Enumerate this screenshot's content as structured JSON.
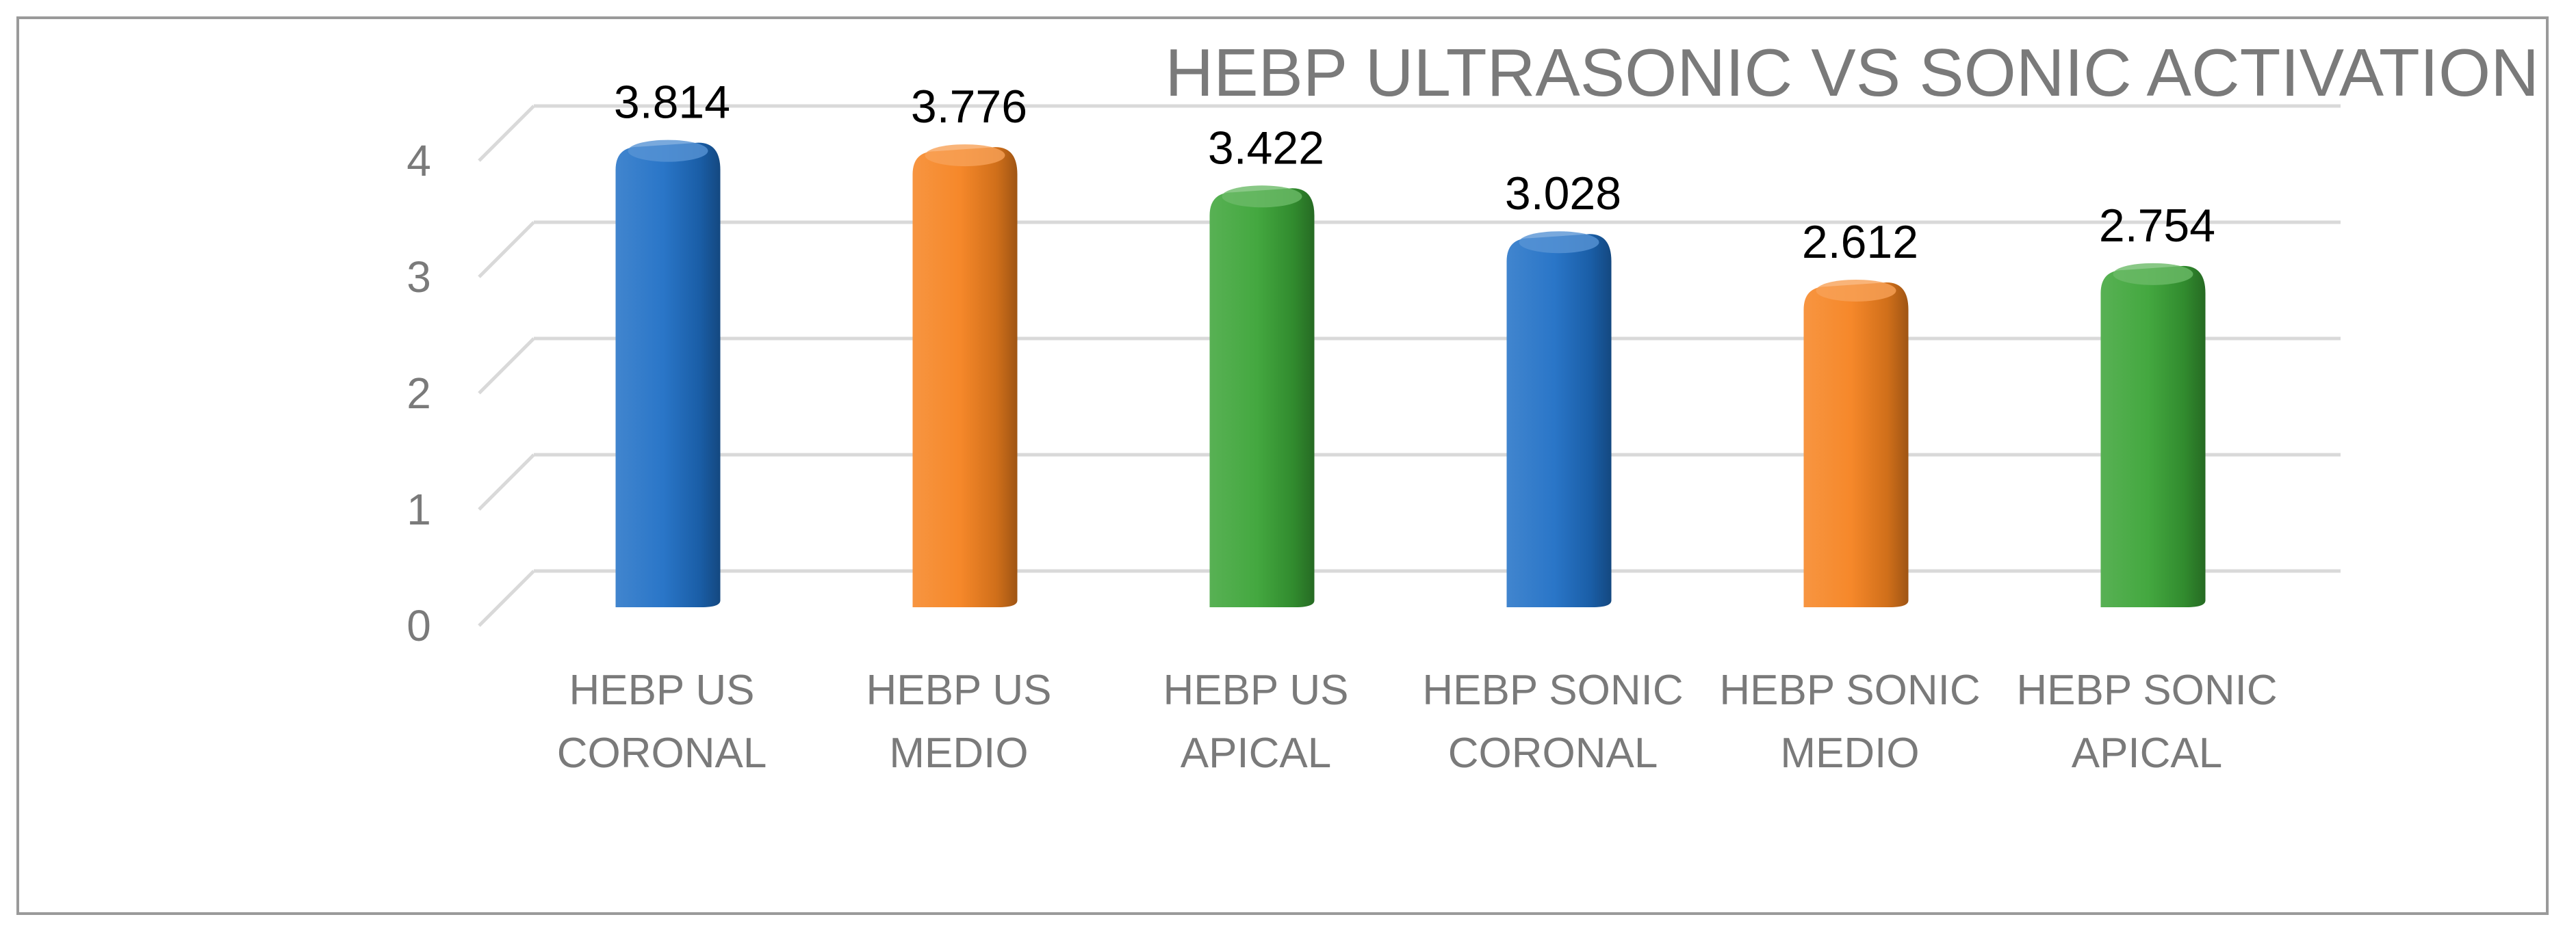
{
  "chart_data": {
    "type": "bar",
    "title": "HEBP ULTRASONIC VS SONIC ACTIVATION",
    "categories": [
      [
        "HEBP US",
        "CORONAL"
      ],
      [
        "HEBP US",
        "MEDIO"
      ],
      [
        "HEBP US",
        "APICAL"
      ],
      [
        "HEBP SONIC",
        "CORONAL"
      ],
      [
        "HEBP SONIC",
        "MEDIO"
      ],
      [
        "HEBP SONIC",
        "APICAL"
      ]
    ],
    "values": [
      3.814,
      3.776,
      3.422,
      3.028,
      2.612,
      2.754
    ],
    "data_labels": [
      "3.814",
      "3.776",
      "3.422",
      "3.028",
      "2.612",
      "2.754"
    ],
    "bar_colors": [
      "#1f6fc5",
      "#f5821f",
      "#3aa336",
      "#1f6fc5",
      "#f5821f",
      "#3aa336"
    ],
    "y_ticks": [
      "0",
      "1",
      "2",
      "3",
      "4"
    ],
    "ylim": [
      0,
      4
    ],
    "xlabel": "",
    "ylabel": "",
    "grid": true,
    "legend": "none"
  }
}
